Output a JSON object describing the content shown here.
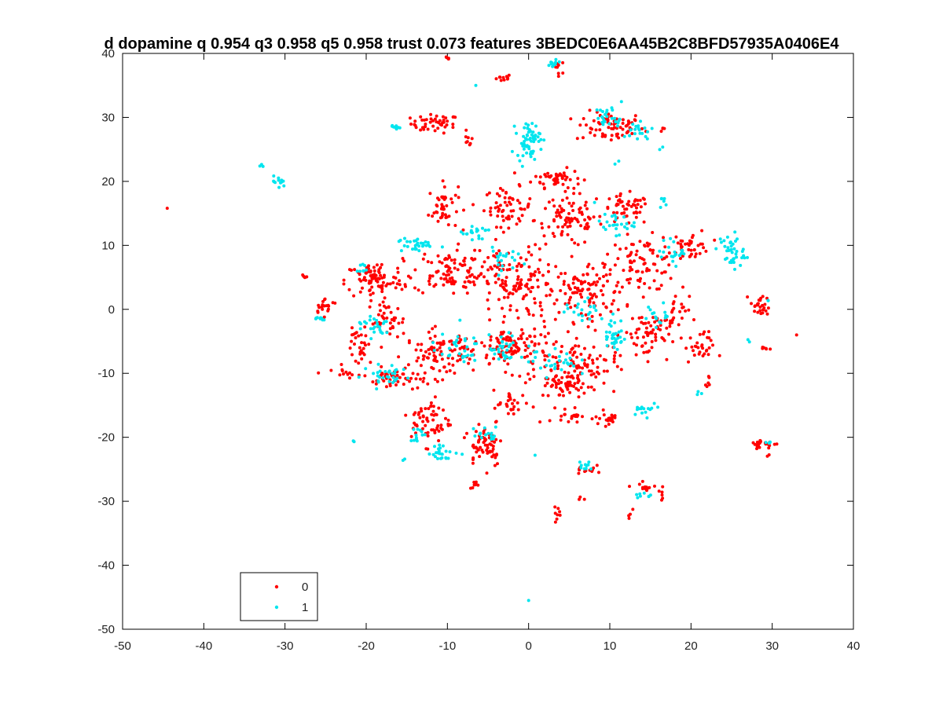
{
  "chart_data": {
    "type": "scatter",
    "title": "d dopamine q 0.954 q3 0.958 q5 0.958 trust 0.073 features 3BEDC0E6AA45B2C8BFD57935A0406E4",
    "xlabel": "",
    "ylabel": "",
    "xlim": [
      -50,
      40
    ],
    "ylim": [
      -50,
      40
    ],
    "xticks": [
      -50,
      -40,
      -30,
      -20,
      -10,
      0,
      10,
      20,
      30,
      40
    ],
    "yticks": [
      -50,
      -40,
      -30,
      -20,
      -10,
      0,
      10,
      20,
      30,
      40
    ],
    "grid": false,
    "legend_position": "bottom-left",
    "colors": {
      "0": "#ff0000",
      "1": "#00e5ee"
    },
    "series": [
      {
        "name": "0",
        "color": "#ff0000",
        "clusters": [
          {
            "cx": -44.5,
            "cy": 15.8,
            "rx": 0.2,
            "ry": 0.2,
            "n": 1
          },
          {
            "cx": -10.0,
            "cy": 39.2,
            "rx": 0.6,
            "ry": 0.3,
            "n": 5
          },
          {
            "cx": -3.0,
            "cy": 36.2,
            "rx": 0.8,
            "ry": 0.5,
            "n": 10
          },
          {
            "cx": 3.8,
            "cy": 38.0,
            "rx": 0.6,
            "ry": 1.0,
            "n": 8
          },
          {
            "cx": -11.5,
            "cy": 29.0,
            "rx": 2.5,
            "ry": 1.2,
            "n": 45
          },
          {
            "cx": -7.5,
            "cy": 26.5,
            "rx": 0.5,
            "ry": 1.0,
            "n": 8
          },
          {
            "cx": 10.0,
            "cy": 28.5,
            "rx": 3.5,
            "ry": 2.0,
            "n": 70
          },
          {
            "cx": 16.5,
            "cy": 28.2,
            "rx": 0.3,
            "ry": 0.5,
            "n": 4
          },
          {
            "cx": 3.5,
            "cy": 20.5,
            "rx": 2.5,
            "ry": 1.2,
            "n": 45
          },
          {
            "cx": -10.5,
            "cy": 16.0,
            "rx": 1.5,
            "ry": 3.0,
            "n": 45
          },
          {
            "cx": -2.5,
            "cy": 16.0,
            "rx": 2.5,
            "ry": 2.5,
            "n": 60
          },
          {
            "cx": 5.0,
            "cy": 14.0,
            "rx": 3.5,
            "ry": 3.5,
            "n": 90
          },
          {
            "cx": 12.0,
            "cy": 15.5,
            "rx": 2.5,
            "ry": 2.0,
            "n": 50
          },
          {
            "cx": 20.0,
            "cy": 10.0,
            "rx": 2.0,
            "ry": 2.0,
            "n": 40
          },
          {
            "cx": 14.0,
            "cy": 7.0,
            "rx": 3.5,
            "ry": 3.5,
            "n": 80
          },
          {
            "cx": -19.0,
            "cy": 4.5,
            "rx": 3.0,
            "ry": 2.5,
            "n": 90
          },
          {
            "cx": -27.5,
            "cy": 5.2,
            "rx": 0.6,
            "ry": 0.3,
            "n": 5
          },
          {
            "cx": -25.0,
            "cy": 0.5,
            "rx": 1.3,
            "ry": 1.0,
            "n": 20
          },
          {
            "cx": -10.0,
            "cy": 6.0,
            "rx": 3.5,
            "ry": 3.0,
            "n": 90
          },
          {
            "cx": -2.0,
            "cy": 4.0,
            "rx": 4.0,
            "ry": 4.5,
            "n": 130
          },
          {
            "cx": 7.0,
            "cy": 3.0,
            "rx": 4.0,
            "ry": 4.0,
            "n": 110
          },
          {
            "cx": -17.5,
            "cy": -2.0,
            "rx": 2.0,
            "ry": 2.5,
            "n": 40
          },
          {
            "cx": -20.5,
            "cy": -6.0,
            "rx": 1.5,
            "ry": 2.5,
            "n": 30
          },
          {
            "cx": -22.5,
            "cy": -10.0,
            "rx": 1.5,
            "ry": 0.6,
            "n": 12
          },
          {
            "cx": -11.0,
            "cy": -7.0,
            "rx": 3.5,
            "ry": 3.0,
            "n": 100
          },
          {
            "cx": -16.5,
            "cy": -11.0,
            "rx": 2.5,
            "ry": 1.5,
            "n": 40
          },
          {
            "cx": -2.0,
            "cy": -6.0,
            "rx": 4.0,
            "ry": 3.0,
            "n": 110
          },
          {
            "cx": 6.0,
            "cy": -9.0,
            "rx": 4.0,
            "ry": 3.5,
            "n": 110
          },
          {
            "cx": 14.5,
            "cy": -4.0,
            "rx": 2.5,
            "ry": 3.0,
            "n": 60
          },
          {
            "cx": 21.0,
            "cy": -6.0,
            "rx": 1.5,
            "ry": 2.0,
            "n": 30
          },
          {
            "cx": 18.0,
            "cy": -1.0,
            "rx": 1.5,
            "ry": 2.5,
            "n": 25
          },
          {
            "cx": 28.5,
            "cy": 0.5,
            "rx": 1.0,
            "ry": 1.5,
            "n": 25
          },
          {
            "cx": 29.0,
            "cy": -6.2,
            "rx": 0.6,
            "ry": 0.3,
            "n": 6
          },
          {
            "cx": 33.0,
            "cy": -4.0,
            "rx": 0.2,
            "ry": 0.2,
            "n": 1
          },
          {
            "cx": 22.0,
            "cy": -11.5,
            "rx": 0.5,
            "ry": 1.0,
            "n": 6
          },
          {
            "cx": 10.0,
            "cy": -17.0,
            "rx": 1.5,
            "ry": 1.0,
            "n": 20
          },
          {
            "cx": 5.0,
            "cy": -16.5,
            "rx": 1.2,
            "ry": 1.0,
            "n": 20
          },
          {
            "cx": -12.0,
            "cy": -17.5,
            "rx": 2.0,
            "ry": 3.0,
            "n": 60
          },
          {
            "cx": -5.5,
            "cy": -21.0,
            "rx": 2.0,
            "ry": 3.0,
            "n": 60
          },
          {
            "cx": -2.0,
            "cy": -15.0,
            "rx": 2.0,
            "ry": 2.0,
            "n": 30
          },
          {
            "cx": 4.0,
            "cy": -12.0,
            "rx": 2.0,
            "ry": 1.5,
            "n": 30
          },
          {
            "cx": -6.5,
            "cy": -27.5,
            "rx": 0.6,
            "ry": 0.5,
            "n": 8
          },
          {
            "cx": 29.0,
            "cy": -21.0,
            "rx": 1.5,
            "ry": 0.6,
            "n": 25
          },
          {
            "cx": 29.5,
            "cy": -22.8,
            "rx": 0.3,
            "ry": 0.3,
            "n": 2
          },
          {
            "cx": 7.0,
            "cy": -25.0,
            "rx": 1.0,
            "ry": 1.0,
            "n": 12
          },
          {
            "cx": 14.5,
            "cy": -27.8,
            "rx": 1.5,
            "ry": 0.6,
            "n": 15
          },
          {
            "cx": 16.5,
            "cy": -29.0,
            "rx": 0.3,
            "ry": 0.5,
            "n": 4
          },
          {
            "cx": 12.5,
            "cy": -32.0,
            "rx": 0.5,
            "ry": 0.8,
            "n": 4
          },
          {
            "cx": 3.5,
            "cy": -32.0,
            "rx": 0.4,
            "ry": 1.0,
            "n": 8
          },
          {
            "cx": 6.5,
            "cy": -29.5,
            "rx": 0.4,
            "ry": 0.4,
            "n": 3
          }
        ]
      },
      {
        "name": "1",
        "color": "#00e5ee",
        "clusters": [
          {
            "cx": -33.0,
            "cy": 22.5,
            "rx": 0.4,
            "ry": 0.4,
            "n": 3
          },
          {
            "cx": -30.8,
            "cy": 19.8,
            "rx": 0.7,
            "ry": 0.8,
            "n": 12
          },
          {
            "cx": -16.5,
            "cy": 28.5,
            "rx": 0.8,
            "ry": 0.4,
            "n": 8
          },
          {
            "cx": 3.0,
            "cy": 38.5,
            "rx": 1.0,
            "ry": 0.6,
            "n": 12
          },
          {
            "cx": -6.5,
            "cy": 35.0,
            "rx": 0.3,
            "ry": 0.3,
            "n": 1
          },
          {
            "cx": 0.0,
            "cy": 26.5,
            "rx": 1.2,
            "ry": 2.3,
            "n": 60
          },
          {
            "cx": 10.0,
            "cy": 30.0,
            "rx": 1.5,
            "ry": 1.5,
            "n": 25
          },
          {
            "cx": 13.5,
            "cy": 28.0,
            "rx": 1.5,
            "ry": 1.5,
            "n": 20
          },
          {
            "cx": 16.5,
            "cy": 25.0,
            "rx": 0.3,
            "ry": 0.4,
            "n": 2
          },
          {
            "cx": 11.0,
            "cy": 23.0,
            "rx": 0.3,
            "ry": 0.3,
            "n": 2
          },
          {
            "cx": 25.0,
            "cy": 9.0,
            "rx": 1.3,
            "ry": 2.5,
            "n": 40
          },
          {
            "cx": 16.5,
            "cy": 16.5,
            "rx": 0.4,
            "ry": 0.8,
            "n": 6
          },
          {
            "cx": 10.5,
            "cy": 13.5,
            "rx": 2.0,
            "ry": 1.5,
            "n": 25
          },
          {
            "cx": 18.0,
            "cy": 9.0,
            "rx": 1.5,
            "ry": 1.5,
            "n": 20
          },
          {
            "cx": -14.0,
            "cy": 10.0,
            "rx": 2.0,
            "ry": 1.0,
            "n": 30
          },
          {
            "cx": -6.5,
            "cy": 12.0,
            "rx": 1.5,
            "ry": 1.5,
            "n": 20
          },
          {
            "cx": -3.5,
            "cy": 8.0,
            "rx": 1.5,
            "ry": 1.5,
            "n": 20
          },
          {
            "cx": -26.0,
            "cy": -1.5,
            "rx": 1.0,
            "ry": 0.3,
            "n": 8
          },
          {
            "cx": -20.5,
            "cy": 6.5,
            "rx": 0.5,
            "ry": 1.0,
            "n": 8
          },
          {
            "cx": -19.0,
            "cy": -2.5,
            "rx": 2.0,
            "ry": 1.5,
            "n": 25
          },
          {
            "cx": -17.5,
            "cy": -10.5,
            "rx": 2.5,
            "ry": 1.5,
            "n": 30
          },
          {
            "cx": -9.0,
            "cy": -6.0,
            "rx": 2.5,
            "ry": 2.0,
            "n": 30
          },
          {
            "cx": -3.0,
            "cy": -6.5,
            "rx": 1.5,
            "ry": 2.0,
            "n": 30
          },
          {
            "cx": 3.0,
            "cy": -8.0,
            "rx": 2.5,
            "ry": 2.0,
            "n": 30
          },
          {
            "cx": 10.5,
            "cy": -4.0,
            "rx": 1.0,
            "ry": 2.5,
            "n": 35
          },
          {
            "cx": 7.0,
            "cy": 0.0,
            "rx": 2.0,
            "ry": 1.5,
            "n": 20
          },
          {
            "cx": 16.0,
            "cy": -1.0,
            "rx": 1.5,
            "ry": 1.5,
            "n": 15
          },
          {
            "cx": 14.5,
            "cy": -15.5,
            "rx": 1.5,
            "ry": 0.8,
            "n": 15
          },
          {
            "cx": 21.0,
            "cy": -13.0,
            "rx": 0.3,
            "ry": 0.5,
            "n": 3
          },
          {
            "cx": 27.0,
            "cy": -5.0,
            "rx": 0.3,
            "ry": 0.3,
            "n": 2
          },
          {
            "cx": 29.5,
            "cy": 1.5,
            "rx": 0.3,
            "ry": 0.3,
            "n": 2
          },
          {
            "cx": -10.5,
            "cy": -22.5,
            "rx": 1.5,
            "ry": 1.0,
            "n": 25
          },
          {
            "cx": -13.5,
            "cy": -19.5,
            "rx": 1.0,
            "ry": 1.0,
            "n": 12
          },
          {
            "cx": -5.0,
            "cy": -19.5,
            "rx": 1.5,
            "ry": 1.0,
            "n": 15
          },
          {
            "cx": -21.5,
            "cy": -20.8,
            "rx": 0.3,
            "ry": 0.3,
            "n": 2
          },
          {
            "cx": -15.5,
            "cy": -23.5,
            "rx": 0.3,
            "ry": 0.3,
            "n": 2
          },
          {
            "cx": 0.8,
            "cy": -22.8,
            "rx": 0.2,
            "ry": 0.2,
            "n": 1
          },
          {
            "cx": 29.5,
            "cy": -20.8,
            "rx": 0.5,
            "ry": 0.3,
            "n": 4
          },
          {
            "cx": 7.0,
            "cy": -24.5,
            "rx": 0.8,
            "ry": 0.8,
            "n": 10
          },
          {
            "cx": 14.0,
            "cy": -29.0,
            "rx": 0.8,
            "ry": 0.6,
            "n": 8
          },
          {
            "cx": 0.0,
            "cy": -45.5,
            "rx": 0.2,
            "ry": 0.2,
            "n": 1
          }
        ]
      }
    ]
  }
}
